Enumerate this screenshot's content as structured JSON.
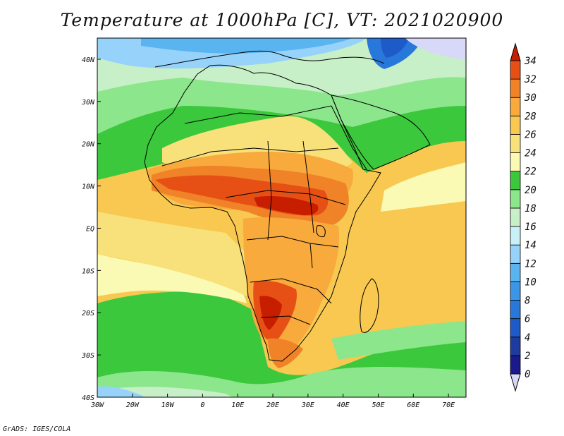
{
  "title": "Temperature at 1000hPa [C], VT: 2021020900",
  "credit": "GrADS: IGES/COLA",
  "map": {
    "lon_range": [
      -30,
      75
    ],
    "lat_range": [
      -40,
      45
    ],
    "lon_ticks": [
      "30W",
      "20W",
      "10W",
      "0",
      "10E",
      "20E",
      "30E",
      "40E",
      "50E",
      "60E",
      "70E"
    ],
    "lat_ticks": [
      "40N",
      "30N",
      "20N",
      "10N",
      "EQ",
      "10S",
      "20S",
      "30S",
      "40S"
    ]
  },
  "colorbar": {
    "levels": [
      "0",
      "2",
      "4",
      "6",
      "8",
      "10",
      "12",
      "14",
      "16",
      "18",
      "20",
      "22",
      "24",
      "26",
      "28",
      "30",
      "32",
      "34"
    ],
    "colors": [
      "#d8d8f8",
      "#1a1a8c",
      "#1e3ca0",
      "#1e5ac8",
      "#2878dc",
      "#3c96e6",
      "#5ab4f0",
      "#96d2fa",
      "#c8f0f8",
      "#c8f0c8",
      "#8ce68c",
      "#3cc83c",
      "#fafab4",
      "#f8e17a",
      "#f8c850",
      "#f8aa3c",
      "#f08228",
      "#e65014",
      "#c81e00"
    ]
  }
}
